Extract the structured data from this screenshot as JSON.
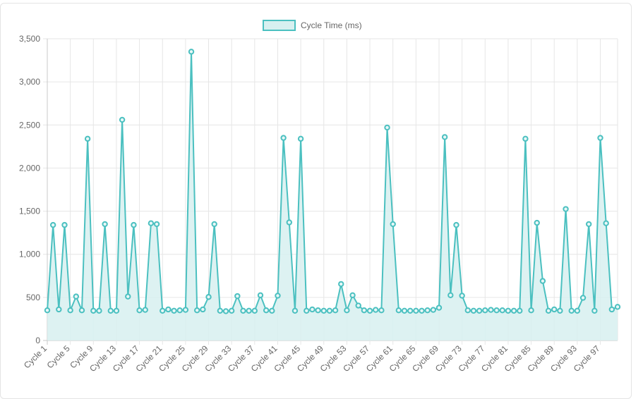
{
  "chart_data": {
    "type": "line",
    "legend": {
      "label": "Cycle Time (ms)",
      "placement": "top-center"
    },
    "colors": {
      "line": "#4bc0c0",
      "fill": "#d7f0f0",
      "grid": "#e6e6e6",
      "axis": "#c9c9c9",
      "text": "#666666"
    },
    "ylim": [
      0,
      3500
    ],
    "yticks": [
      0,
      500,
      1000,
      1500,
      2000,
      2500,
      3000,
      3500
    ],
    "ytick_labels": [
      "0",
      "500",
      "1,000",
      "1,500",
      "2,000",
      "2,500",
      "3,000",
      "3,500"
    ],
    "xtick_labels": [
      "Cycle 1",
      "Cycle 5",
      "Cycle 9",
      "Cycle 13",
      "Cycle 17",
      "Cycle 21",
      "Cycle 25",
      "Cycle 29",
      "Cycle 33",
      "Cycle 37",
      "Cycle 41",
      "Cycle 45",
      "Cycle 49",
      "Cycle 53",
      "Cycle 57",
      "Cycle 61",
      "Cycle 65",
      "Cycle 69",
      "Cycle 73",
      "Cycle 77",
      "Cycle 81",
      "Cycle 85",
      "Cycle 89",
      "Cycle 93",
      "Cycle 97"
    ],
    "xtick_every": 4,
    "grid": true,
    "series": [
      {
        "name": "Cycle Time (ms)",
        "values": [
          350,
          1340,
          360,
          1340,
          350,
          510,
          350,
          2340,
          345,
          345,
          1350,
          345,
          345,
          2560,
          510,
          1340,
          350,
          355,
          1360,
          1350,
          345,
          360,
          345,
          350,
          355,
          3350,
          350,
          360,
          505,
          1350,
          345,
          340,
          345,
          515,
          345,
          345,
          345,
          525,
          350,
          345,
          520,
          2350,
          1370,
          345,
          2340,
          345,
          360,
          350,
          345,
          345,
          350,
          655,
          350,
          525,
          405,
          350,
          345,
          355,
          350,
          2470,
          1350,
          350,
          345,
          345,
          345,
          345,
          350,
          355,
          380,
          2360,
          525,
          1340,
          520,
          350,
          345,
          345,
          350,
          355,
          350,
          350,
          345,
          345,
          345,
          2340,
          350,
          1365,
          690,
          345,
          360,
          345,
          1525,
          345,
          345,
          495,
          1350,
          345,
          2350,
          1360,
          360,
          390
        ]
      }
    ]
  }
}
